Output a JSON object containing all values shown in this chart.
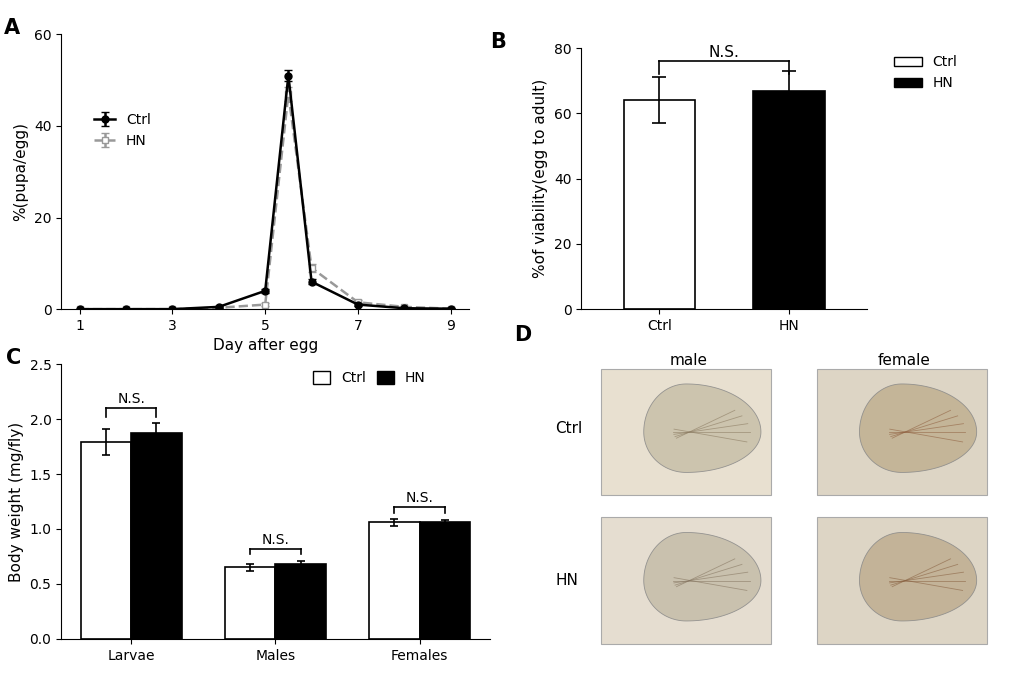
{
  "panel_A": {
    "ctrl_x": [
      1,
      2,
      3,
      4,
      5,
      5.5,
      6,
      7,
      8,
      9
    ],
    "ctrl_y": [
      0,
      0,
      0,
      0.5,
      4,
      51,
      6,
      1,
      0.2,
      0.1
    ],
    "ctrl_err": [
      0,
      0,
      0,
      0.2,
      0.5,
      1.2,
      0.6,
      0.3,
      0.1,
      0.05
    ],
    "hn_x": [
      1,
      2,
      3,
      4,
      5,
      5.5,
      6,
      7,
      8,
      9
    ],
    "hn_y": [
      0,
      0,
      0,
      0.3,
      1,
      47,
      9,
      1.5,
      0.5,
      0.1
    ],
    "hn_err": [
      0,
      0,
      0,
      0.1,
      0.3,
      1.5,
      0.8,
      0.4,
      0.15,
      0.05
    ],
    "ylabel": "%(pupa/egg)",
    "xlabel": "Day after egg",
    "ylim": [
      0,
      60
    ],
    "yticks": [
      0,
      20,
      40,
      60
    ],
    "xticks": [
      1,
      3,
      5,
      7,
      9
    ]
  },
  "panel_B": {
    "categories": [
      "Ctrl",
      "HN"
    ],
    "values": [
      64,
      67
    ],
    "errors": [
      7,
      6
    ],
    "colors": [
      "#ffffff",
      "#000000"
    ],
    "ylabel": "%of viability(egg to adult)",
    "ylim": [
      0,
      80
    ],
    "yticks": [
      0,
      20,
      40,
      60,
      80
    ]
  },
  "panel_C": {
    "group_labels": [
      "Larvae",
      "Males",
      "Females"
    ],
    "ctrl_values": [
      1.79,
      0.65,
      1.06
    ],
    "hn_values": [
      1.87,
      0.68,
      1.06
    ],
    "ctrl_errors": [
      0.12,
      0.03,
      0.03
    ],
    "hn_errors": [
      0.09,
      0.03,
      0.02
    ],
    "ylabel": "Body weight (mg/fly)",
    "ylim": [
      0,
      2.5
    ],
    "yticks": [
      0.0,
      0.5,
      1.0,
      1.5,
      2.0,
      2.5
    ]
  },
  "bg_color": "#ffffff",
  "label_fontsize": 11,
  "tick_fontsize": 10,
  "panel_label_fontsize": 15
}
